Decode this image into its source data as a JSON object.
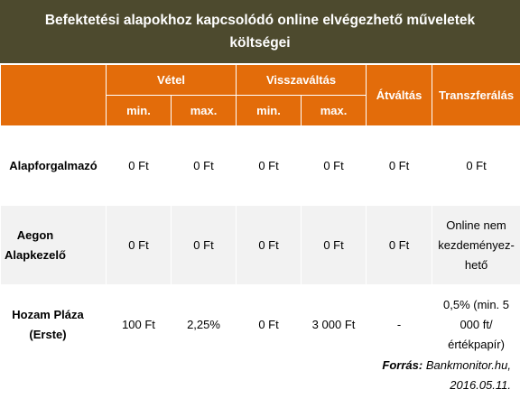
{
  "title": "Befektetési alapokhoz kapcsolódó online elvégezhető műveletek költségei",
  "header": {
    "vetel": "Vétel",
    "visszavaltas": "Visszaváltás",
    "atvaltas": "Átváltás",
    "transzferalas": "Transzferálás",
    "min": "min.",
    "max": "max."
  },
  "rows": [
    {
      "name": "Alapforgalmazó",
      "vetel_min": "0 Ft",
      "vetel_max": "0 Ft",
      "vissza_min": "0 Ft",
      "vissza_max": "0 Ft",
      "atvaltas": "0 Ft",
      "transzfer": "0 Ft"
    },
    {
      "name": "Aegon Alapkezelő",
      "vetel_min": "0 Ft",
      "vetel_max": "0 Ft",
      "vissza_min": "0 Ft",
      "vissza_max": "0 Ft",
      "atvaltas": "0 Ft",
      "transzfer": "Online nem kezdeményez-hető"
    },
    {
      "name": "Hozam Pláza (Erste)",
      "vetel_min": "100 Ft",
      "vetel_max": "2,25%",
      "vissza_min": "0 Ft",
      "vissza_max": "3 000 Ft",
      "atvaltas": "-",
      "transzfer": "0,5% (min. 5 000 ft/értékpapír)"
    }
  ],
  "source": {
    "label": "Forrás:",
    "text": "Bankmonitor.hu,",
    "date": "2016.05.11."
  }
}
